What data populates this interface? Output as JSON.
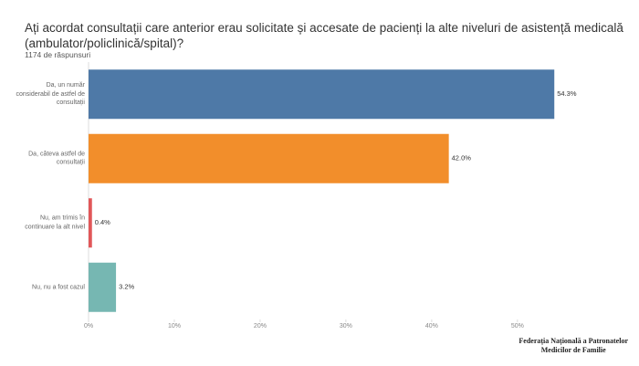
{
  "chart_data": {
    "type": "hbar",
    "title": "Ați acordat consultații care anterior erau solicitate și accesate de pacienți la alte niveluri de asistență medicală (ambulator/policlinică/spital)?",
    "subtitle": "1174 de răspunsuri",
    "categories": [
      "Da, un număr considerabil de astfel de consultații",
      "Da, câteva astfel de consultații",
      "Nu, am trimis în continuare la alt nivel",
      "Nu, nu a fost cazul"
    ],
    "values": [
      54.3,
      42.0,
      0.4,
      3.2
    ],
    "value_labels": [
      "54.3%",
      "42.0%",
      "0.4%",
      "3.2%"
    ],
    "colors": [
      "#4e79a7",
      "#f28e2b",
      "#e15759",
      "#76b7b2"
    ],
    "xlim": [
      0,
      58
    ],
    "xticks": [
      {
        "value": 0,
        "label": "0%"
      },
      {
        "value": 10,
        "label": "10%"
      },
      {
        "value": 20,
        "label": "20%"
      },
      {
        "value": 30,
        "label": "30%"
      },
      {
        "value": 40,
        "label": "40%"
      },
      {
        "value": 50,
        "label": "50%"
      }
    ],
    "grid": false
  },
  "footer": {
    "logo_line1": "Federația Națională a Patronatelor",
    "logo_line2": "Medicilor de Familie"
  }
}
